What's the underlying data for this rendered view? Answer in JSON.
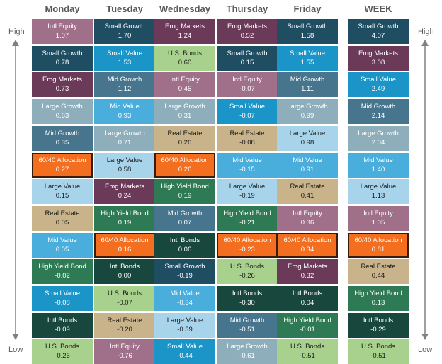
{
  "chart_data": {
    "type": "table",
    "columns": [
      "Monday",
      "Tuesday",
      "Wednesday",
      "Thursday",
      "Friday",
      "WEEK"
    ],
    "scale_labels": {
      "high": "High",
      "low": "Low"
    },
    "category_colors": {
      "Intl Equity": "#a0708a",
      "Small Growth": "#1f4e63",
      "Emg Markets": "#6a3a58",
      "Large Growth": "#8eaebb",
      "Mid Growth": "#47758e",
      "60/40 Allocation": "#f36f1f",
      "Large Value": "#a7d4ea",
      "Real Estate": "#c8b38a",
      "Mid Value": "#4aaedd",
      "High Yield Bond": "#2e7a54",
      "Small Value": "#1b95c8",
      "Intl Bonds": "#18473e",
      "U.S. Bonds": "#a9d18e"
    },
    "ranked": [
      [
        {
          "name": "Intl Equity",
          "value": "1.07"
        },
        {
          "name": "Small Growth",
          "value": "0.78"
        },
        {
          "name": "Emg Markets",
          "value": "0.73"
        },
        {
          "name": "Large Growth",
          "value": "0.63"
        },
        {
          "name": "Mid Growth",
          "value": "0.35"
        },
        {
          "name": "60/40 Allocation",
          "value": "0.27"
        },
        {
          "name": "Large Value",
          "value": "0.15"
        },
        {
          "name": "Real Estate",
          "value": "0.05"
        },
        {
          "name": "Mid Value",
          "value": "0.05"
        },
        {
          "name": "High Yield Bond",
          "value": "-0.02"
        },
        {
          "name": "Small Value",
          "value": "-0.08"
        },
        {
          "name": "Intl Bonds",
          "value": "-0.09"
        },
        {
          "name": "U.S. Bonds",
          "value": "-0.26"
        }
      ],
      [
        {
          "name": "Small Growth",
          "value": "1.70"
        },
        {
          "name": "Small Value",
          "value": "1.53"
        },
        {
          "name": "Mid Growth",
          "value": "1.12"
        },
        {
          "name": "Mid Value",
          "value": "0.93"
        },
        {
          "name": "Large Growth",
          "value": "0.71"
        },
        {
          "name": "Large Value",
          "value": "0.58"
        },
        {
          "name": "Emg Markets",
          "value": "0.24"
        },
        {
          "name": "High Yield Bond",
          "value": "0.19"
        },
        {
          "name": "60/40 Allocation",
          "value": "0.16"
        },
        {
          "name": "Intl Bonds",
          "value": "0.00"
        },
        {
          "name": "U.S. Bonds",
          "value": "-0.07"
        },
        {
          "name": "Real Estate",
          "value": "-0.20"
        },
        {
          "name": "Intl Equity",
          "value": "-0.76"
        }
      ],
      [
        {
          "name": "Emg Markets",
          "value": "1.24"
        },
        {
          "name": "U.S. Bonds",
          "value": "0.60"
        },
        {
          "name": "Intl Equity",
          "value": "0.45"
        },
        {
          "name": "Large Growth",
          "value": "0.31"
        },
        {
          "name": "Real Estate",
          "value": "0.26"
        },
        {
          "name": "60/40 Allocation",
          "value": "0.26"
        },
        {
          "name": "High Yield Bond",
          "value": "0.19"
        },
        {
          "name": "Mid Growth",
          "value": "0.07"
        },
        {
          "name": "Intl Bonds",
          "value": "0.06"
        },
        {
          "name": "Small Growth",
          "value": "-0.19"
        },
        {
          "name": "Mid Value",
          "value": "-0.34"
        },
        {
          "name": "Large Value",
          "value": "-0.39"
        },
        {
          "name": "Small Value",
          "value": "-0.44"
        }
      ],
      [
        {
          "name": "Emg Markets",
          "value": "0.52"
        },
        {
          "name": "Small Growth",
          "value": "0.15"
        },
        {
          "name": "Intl Equity",
          "value": "-0.07"
        },
        {
          "name": "Small Value",
          "value": "-0.07"
        },
        {
          "name": "Real Estate",
          "value": "-0.08"
        },
        {
          "name": "Mid Value",
          "value": "-0.15"
        },
        {
          "name": "Large Value",
          "value": "-0.19"
        },
        {
          "name": "High Yield Bond",
          "value": "-0.21"
        },
        {
          "name": "60/40 Allocation",
          "value": "-0.23"
        },
        {
          "name": "U.S. Bonds",
          "value": "-0.26"
        },
        {
          "name": "Intl Bonds",
          "value": "-0.30"
        },
        {
          "name": "Mid Growth",
          "value": "-0.51"
        },
        {
          "name": "Large Growth",
          "value": "-0.61"
        }
      ],
      [
        {
          "name": "Small Growth",
          "value": "1.58"
        },
        {
          "name": "Small Value",
          "value": "1.55"
        },
        {
          "name": "Mid Growth",
          "value": "1.11"
        },
        {
          "name": "Large Growth",
          "value": "0.99"
        },
        {
          "name": "Large Value",
          "value": "0.98"
        },
        {
          "name": "Mid Value",
          "value": "0.91"
        },
        {
          "name": "Real Estate",
          "value": "0.41"
        },
        {
          "name": "Intl Equity",
          "value": "0.36"
        },
        {
          "name": "60/40 Allocation",
          "value": "0.34"
        },
        {
          "name": "Emg Markets",
          "value": "0.32"
        },
        {
          "name": "Intl Bonds",
          "value": "0.04"
        },
        {
          "name": "High Yield Bond",
          "value": "-0.01"
        },
        {
          "name": "U.S. Bonds",
          "value": "-0.51"
        }
      ],
      [
        {
          "name": "Small Growth",
          "value": "4.07"
        },
        {
          "name": "Emg Markets",
          "value": "3.08"
        },
        {
          "name": "Small Value",
          "value": "2.49"
        },
        {
          "name": "Mid Growth",
          "value": "2.14"
        },
        {
          "name": "Large Growth",
          "value": "2.04"
        },
        {
          "name": "Mid Value",
          "value": "1.40"
        },
        {
          "name": "Large Value",
          "value": "1.13"
        },
        {
          "name": "Intl Equity",
          "value": "1.05"
        },
        {
          "name": "60/40 Allocation",
          "value": "0.81"
        },
        {
          "name": "Real Estate",
          "value": "0.44"
        },
        {
          "name": "High Yield Bond",
          "value": "0.13"
        },
        {
          "name": "Intl Bonds",
          "value": "-0.29"
        },
        {
          "name": "U.S. Bonds",
          "value": "-0.51"
        }
      ]
    ]
  }
}
